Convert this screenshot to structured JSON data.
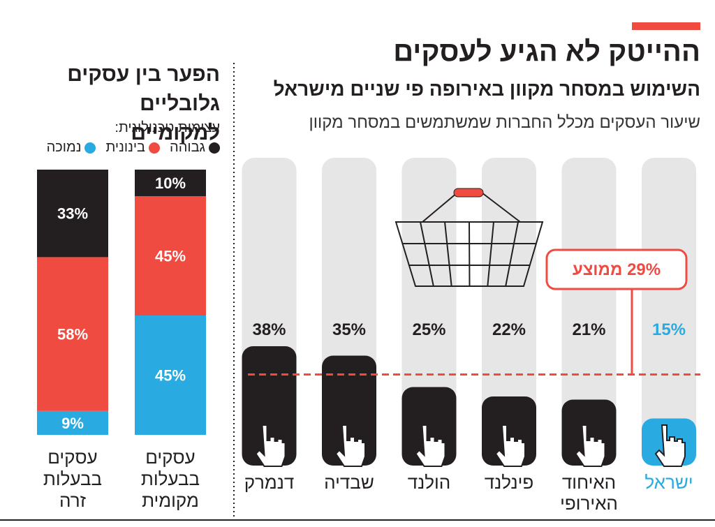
{
  "chart_data": [
    {
      "type": "bar",
      "title": "ההייטק לא הגיע לעסקים",
      "subtitle": "השימוש במסחר מקוון באירופה פי שניים מישראל",
      "description": "שיעור העסקים מכלל החברות שמשתמשים במסחר מקוון",
      "categories": [
        "ישראל",
        "האיחוד האירופי",
        "פינלנד",
        "הולנד",
        "שבדיה",
        "דנמרק"
      ],
      "values": [
        15,
        21,
        22,
        25,
        35,
        38
      ],
      "value_labels": [
        "15%",
        "21%",
        "22%",
        "25%",
        "35%",
        "38%"
      ],
      "colors": [
        "#29abe2",
        "#231f20",
        "#231f20",
        "#231f20",
        "#231f20",
        "#231f20"
      ],
      "average": {
        "value": 29,
        "label": "29% ממוצע",
        "color": "#ef4b41"
      }
    },
    {
      "type": "stacked_bar",
      "title": "הפער בין עסקים גלובליים למקומיים",
      "legend_title": "עצימות טכנולוגית:",
      "categories": [
        "עסקים בבעלות מקומית",
        "עסקים בבעלות זרה"
      ],
      "series": [
        {
          "name": "גבוהה",
          "color": "#231f20",
          "values": [
            10,
            33
          ],
          "value_labels": [
            "10%",
            "33%"
          ]
        },
        {
          "name": "בינונית",
          "color": "#ef4b41",
          "values": [
            45,
            58
          ],
          "value_labels": [
            "45%",
            "58%"
          ]
        },
        {
          "name": "נמוכה",
          "color": "#29abe2",
          "values": [
            45,
            9
          ],
          "value_labels": [
            "45%",
            "9%"
          ]
        }
      ]
    }
  ]
}
